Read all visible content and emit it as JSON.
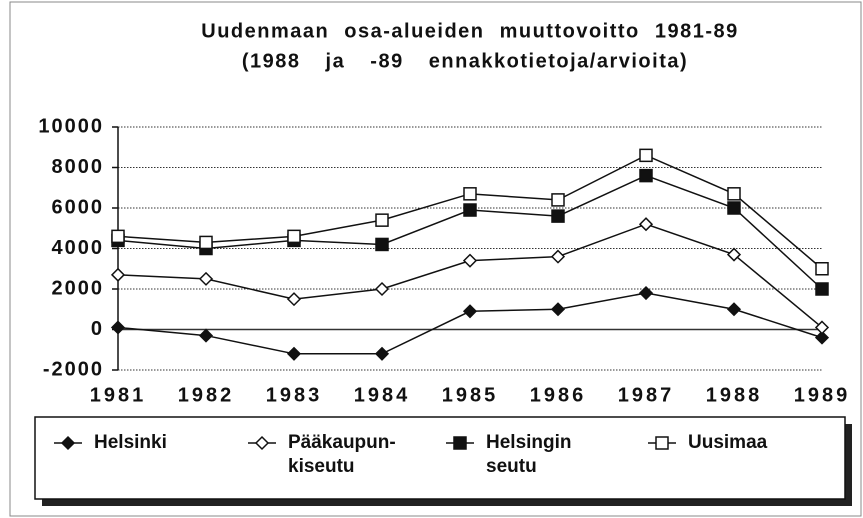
{
  "chart_data": {
    "type": "line",
    "title": "Uudenmaan osa-alueiden muuttovoitto 1981-89",
    "subtitle": "(1988 ja -89 ennakkotietoja/arvioita)",
    "categories": [
      "1981",
      "1982",
      "1983",
      "1984",
      "1985",
      "1986",
      "1987",
      "1988",
      "1989"
    ],
    "series": [
      {
        "name": "Helsinki",
        "color": "#111111",
        "marker": "diamond",
        "filled": true,
        "values": [
          100,
          -300,
          -1200,
          -1200,
          900,
          1000,
          1800,
          1000,
          -400
        ]
      },
      {
        "name": "Pääkaupun-\nkiseutu",
        "color": "#111111",
        "marker": "diamond",
        "filled": false,
        "values": [
          2700,
          2500,
          1500,
          2000,
          3400,
          3600,
          5200,
          3700,
          100
        ]
      },
      {
        "name": "Helsingin\nseutu",
        "color": "#111111",
        "marker": "square",
        "filled": true,
        "values": [
          4400,
          4000,
          4400,
          4200,
          5900,
          5600,
          7600,
          6000,
          2000
        ]
      },
      {
        "name": "Uusimaa",
        "color": "#111111",
        "marker": "square",
        "filled": false,
        "values": [
          4600,
          4300,
          4600,
          5400,
          6700,
          6400,
          8600,
          6700,
          3000
        ]
      }
    ],
    "ylim": [
      -2000,
      10000
    ],
    "yticks": [
      -2000,
      0,
      2000,
      4000,
      6000,
      8000,
      10000
    ],
    "grid": true,
    "legend": "bottom"
  }
}
